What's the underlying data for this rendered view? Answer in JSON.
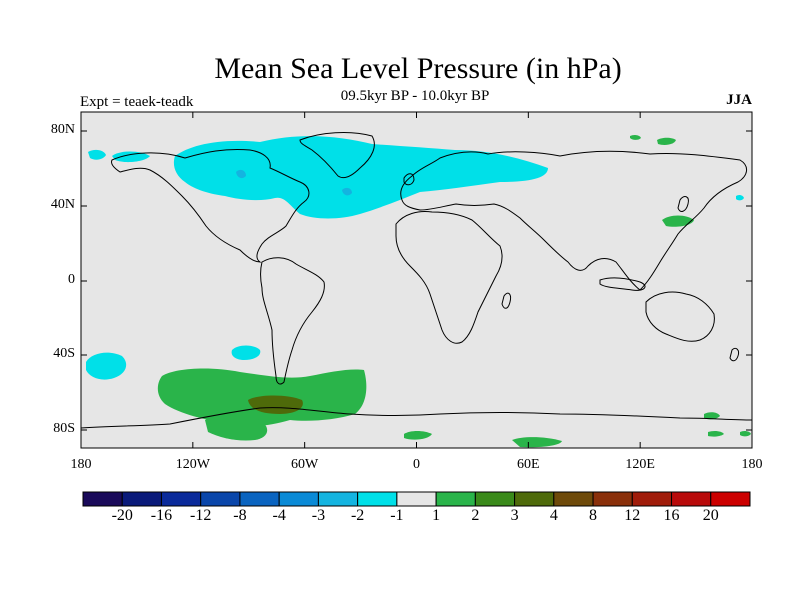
{
  "title": "Mean Sea Level Pressure (in hPa)",
  "subtitle": "09.5kyr BP - 10.0kyr BP",
  "experiment": "Expt = teaek-teadk",
  "season": "JJA",
  "lat_ticks": [
    "80N",
    "40N",
    "0",
    "40S",
    "80S"
  ],
  "lon_ticks": [
    "180",
    "120W",
    "60W",
    "0",
    "60E",
    "120E",
    "180"
  ],
  "colorbar": {
    "labels": [
      "-20",
      "-16",
      "-12",
      "-8",
      "-4",
      "-3",
      "-2",
      "-1",
      "1",
      "2",
      "3",
      "4",
      "8",
      "12",
      "16",
      "20"
    ],
    "colors": [
      "#1a0a5a",
      "#0a1a7a",
      "#0a2a9a",
      "#0a46aa",
      "#0a64c0",
      "#0a8ad6",
      "#14b4e0",
      "#00e0e8",
      "#e6e6e6",
      "#2ab44a",
      "#3a8a1a",
      "#4e6a0a",
      "#6e4a0a",
      "#8a300a",
      "#a01c0a",
      "#b80a0a",
      "#cc0000"
    ]
  },
  "map_colors": {
    "background": "#e6e6e6",
    "cyan": "#00e0e8",
    "blue": "#14b4e0",
    "green": "#2ab44a",
    "dark_green": "#3a8a1a",
    "brown": "#4e6a0a",
    "coast": "#000000"
  }
}
